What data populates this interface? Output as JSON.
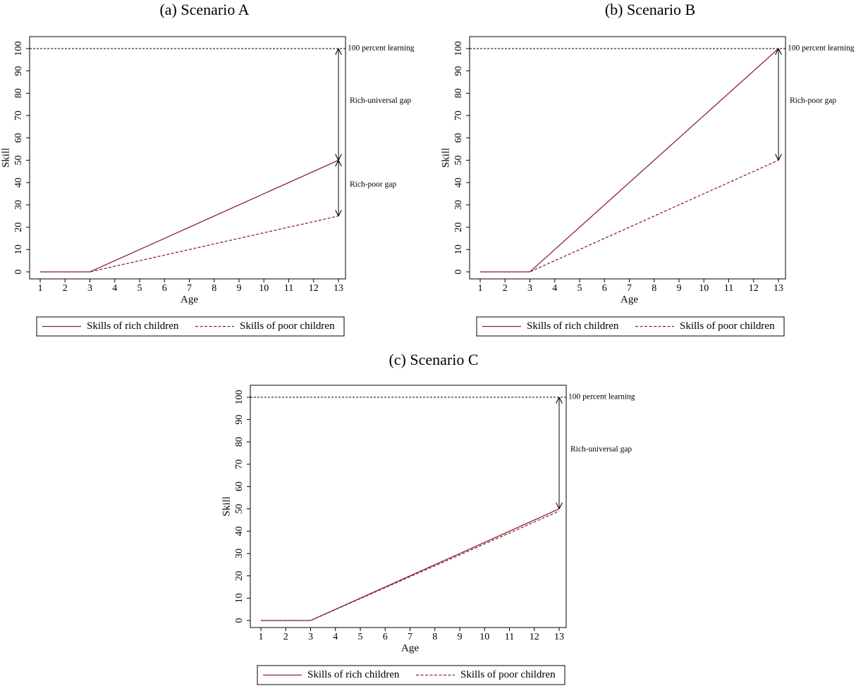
{
  "chart_data": [
    {
      "type": "line",
      "title": "(a) Scenario A",
      "x_label": "Age",
      "y_label": "Skill",
      "xlim": [
        1,
        13
      ],
      "ylim": [
        0,
        100
      ],
      "xticks": [
        1,
        2,
        3,
        4,
        5,
        6,
        7,
        8,
        9,
        10,
        11,
        12,
        13
      ],
      "yticks": [
        0,
        10,
        20,
        30,
        40,
        50,
        60,
        70,
        80,
        90,
        100
      ],
      "x": [
        1,
        3,
        13
      ],
      "series": [
        {
          "name": "Skills of rich children",
          "color": "#8b2530",
          "dash": "solid",
          "values": [
            0,
            0,
            50
          ]
        },
        {
          "name": "Skills of poor children",
          "color": "#8b2530",
          "dash": "dashed",
          "values": [
            0,
            0,
            25
          ]
        }
      ],
      "hline": {
        "value": 100,
        "label": "100 percent learning"
      },
      "annotations": [
        {
          "text": "Rich-universal gap",
          "x": 13,
          "y1": 100,
          "y2": 50
        },
        {
          "text": "Rich-poor gap",
          "x": 13,
          "y1": 50,
          "y2": 25
        }
      ]
    },
    {
      "type": "line",
      "title": "(b) Scenario B",
      "x_label": "Age",
      "y_label": "Skill",
      "xlim": [
        1,
        13
      ],
      "ylim": [
        0,
        100
      ],
      "xticks": [
        1,
        2,
        3,
        4,
        5,
        6,
        7,
        8,
        9,
        10,
        11,
        12,
        13
      ],
      "yticks": [
        0,
        10,
        20,
        30,
        40,
        50,
        60,
        70,
        80,
        90,
        100
      ],
      "x": [
        1,
        3,
        13
      ],
      "series": [
        {
          "name": "Skills of rich children",
          "color": "#8b2530",
          "dash": "solid",
          "values": [
            0,
            0,
            100
          ]
        },
        {
          "name": "Skills of poor children",
          "color": "#8b2530",
          "dash": "dashed",
          "values": [
            0,
            0,
            50
          ]
        }
      ],
      "hline": {
        "value": 100,
        "label": "100 percent learning"
      },
      "annotations": [
        {
          "text": "Rich-poor gap",
          "x": 13,
          "y1": 100,
          "y2": 50
        }
      ]
    },
    {
      "type": "line",
      "title": "(c) Scenario C",
      "x_label": "Age",
      "y_label": "Skill",
      "xlim": [
        1,
        13
      ],
      "ylim": [
        0,
        100
      ],
      "xticks": [
        1,
        2,
        3,
        4,
        5,
        6,
        7,
        8,
        9,
        10,
        11,
        12,
        13
      ],
      "yticks": [
        0,
        10,
        20,
        30,
        40,
        50,
        60,
        70,
        80,
        90,
        100
      ],
      "x": [
        1,
        3,
        13
      ],
      "series": [
        {
          "name": "Skills of rich children",
          "color": "#8b2530",
          "dash": "solid",
          "values": [
            0,
            0,
            50
          ]
        },
        {
          "name": "Skills of poor children",
          "color": "#8b2530",
          "dash": "dashed",
          "values": [
            0,
            0,
            49
          ]
        }
      ],
      "hline": {
        "value": 100,
        "label": "100 percent learning"
      },
      "annotations": [
        {
          "text": "Rich-universal gap",
          "x": 13,
          "y1": 100,
          "y2": 50
        }
      ]
    }
  ]
}
